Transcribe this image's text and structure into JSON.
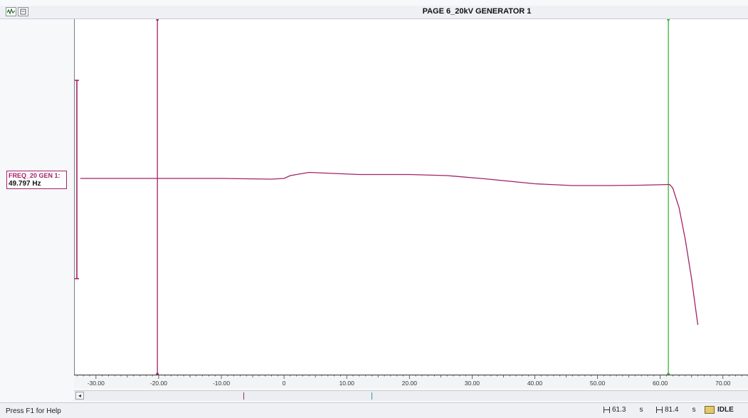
{
  "window": {
    "title": "PAGE 6_20kV GENERATOR 1",
    "icons": [
      "waveform-icon",
      "page-icon"
    ]
  },
  "trace_label": {
    "name": "FREQ_20 GEN 1:",
    "value": "49.797 Hz"
  },
  "chart_data": {
    "type": "line",
    "title": "PAGE 6_20kV GENERATOR 1",
    "xlabel": "",
    "ylabel": "",
    "xlim": [
      -33.5,
      74
    ],
    "x_ticks": [
      -30,
      -20,
      -10,
      0,
      10,
      20,
      30,
      40,
      50,
      60,
      70
    ],
    "x_tick_labels": [
      "-30.00",
      "-20.00",
      "-10.00",
      "0",
      "10.00",
      "20.00",
      "30.00",
      "40.00",
      "50.00",
      "60.00",
      "70.00"
    ],
    "ylim": [
      0,
      1
    ],
    "grid": false,
    "series": [
      {
        "name": "FREQ_20 GEN 1",
        "color": "#a4216b",
        "points": [
          [
            -32.5,
            0.552
          ],
          [
            -10,
            0.552
          ],
          [
            -2,
            0.55
          ],
          [
            0,
            0.552
          ],
          [
            1,
            0.56
          ],
          [
            4,
            0.569
          ],
          [
            8,
            0.566
          ],
          [
            12,
            0.563
          ],
          [
            20,
            0.563
          ],
          [
            26,
            0.56
          ],
          [
            32,
            0.551
          ],
          [
            40,
            0.537
          ],
          [
            46,
            0.532
          ],
          [
            52,
            0.532
          ],
          [
            57,
            0.533
          ],
          [
            61.5,
            0.535
          ],
          [
            62,
            0.525
          ],
          [
            63,
            0.47
          ],
          [
            64,
            0.38
          ],
          [
            65,
            0.27
          ],
          [
            66,
            0.14
          ]
        ]
      }
    ],
    "cursors": [
      {
        "x": -20.2,
        "color": "#a4216b"
      },
      {
        "x": 61.3,
        "color": "#3fae3f"
      }
    ],
    "y_range_marker_color": "#a4216b"
  },
  "scrollbar": {
    "left_button": "◂"
  },
  "status": {
    "help": "Press F1 for Help",
    "cursor1": {
      "value": "61.3",
      "unit": "s"
    },
    "cursor2": {
      "value": "81.4",
      "unit": "s"
    },
    "state": "IDLE"
  }
}
